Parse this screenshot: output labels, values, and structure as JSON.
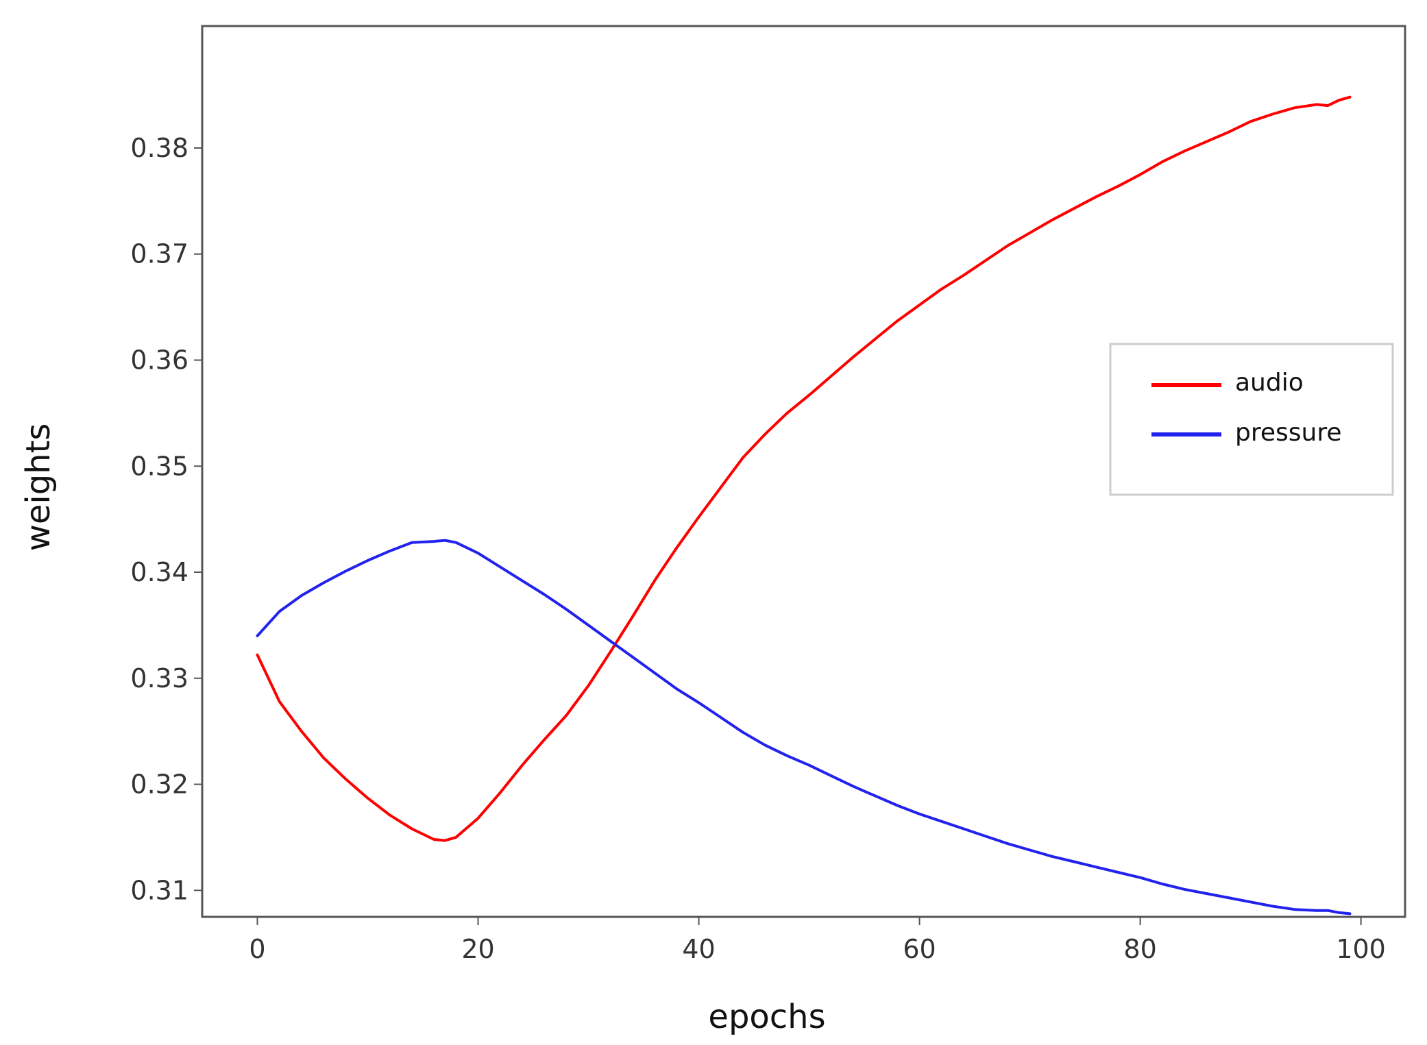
{
  "chart_data": {
    "type": "line",
    "title": "",
    "xlabel": "epochs",
    "ylabel": "weights",
    "xlim": [
      -5,
      104
    ],
    "ylim": [
      0.3075,
      0.3915
    ],
    "xticks": [
      0,
      20,
      40,
      60,
      80,
      100
    ],
    "yticks": [
      0.31,
      0.32,
      0.33,
      0.34,
      0.35,
      0.36,
      0.37,
      0.38
    ],
    "grid": false,
    "legend_position": "center-right",
    "x": [
      0,
      2,
      4,
      6,
      8,
      10,
      12,
      14,
      16,
      17,
      18,
      20,
      22,
      24,
      26,
      28,
      30,
      32,
      34,
      36,
      38,
      40,
      42,
      44,
      46,
      48,
      50,
      52,
      54,
      56,
      58,
      60,
      62,
      64,
      66,
      68,
      70,
      72,
      74,
      76,
      78,
      80,
      82,
      84,
      86,
      88,
      90,
      92,
      94,
      96,
      97,
      98,
      99
    ],
    "series": [
      {
        "name": "audio",
        "color": "#ff0000",
        "values": [
          0.3322,
          0.3278,
          0.325,
          0.3225,
          0.3205,
          0.3187,
          0.3171,
          0.3158,
          0.3148,
          0.3147,
          0.315,
          0.3168,
          0.3192,
          0.3218,
          0.3242,
          0.3265,
          0.3293,
          0.3325,
          0.3358,
          0.3392,
          0.3423,
          0.3452,
          0.348,
          0.3508,
          0.353,
          0.355,
          0.3567,
          0.3585,
          0.3603,
          0.362,
          0.3637,
          0.3652,
          0.3667,
          0.368,
          0.3694,
          0.3708,
          0.372,
          0.3732,
          0.3743,
          0.3754,
          0.3764,
          0.3775,
          0.3787,
          0.3797,
          0.3806,
          0.3815,
          0.3825,
          0.3832,
          0.3838,
          0.3841,
          0.384,
          0.3845,
          0.3848
        ]
      },
      {
        "name": "pressure",
        "color": "#2222ee",
        "values": [
          0.334,
          0.3363,
          0.3378,
          0.339,
          0.3401,
          0.3411,
          0.342,
          0.3428,
          0.3429,
          0.343,
          0.3428,
          0.3418,
          0.3405,
          0.3392,
          0.3379,
          0.3365,
          0.335,
          0.3335,
          0.332,
          0.3305,
          0.329,
          0.3277,
          0.3263,
          0.3249,
          0.3237,
          0.3227,
          0.3218,
          0.3208,
          0.3198,
          0.3189,
          0.318,
          0.3172,
          0.3165,
          0.3158,
          0.3151,
          0.3144,
          0.3138,
          0.3132,
          0.3127,
          0.3122,
          0.3117,
          0.3112,
          0.3106,
          0.3101,
          0.3097,
          0.3093,
          0.3089,
          0.3085,
          0.3082,
          0.3081,
          0.3081,
          0.3079,
          0.3078
        ]
      }
    ]
  }
}
